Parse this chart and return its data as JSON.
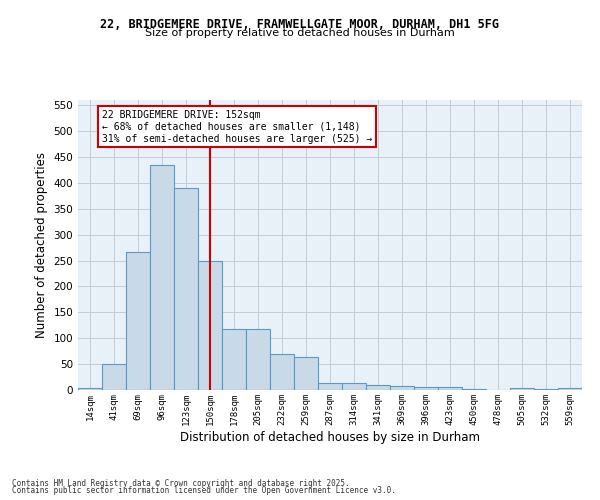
{
  "title_line1": "22, BRIDGEMERE DRIVE, FRAMWELLGATE MOOR, DURHAM, DH1 5FG",
  "title_line2": "Size of property relative to detached houses in Durham",
  "xlabel": "Distribution of detached houses by size in Durham",
  "ylabel": "Number of detached properties",
  "bar_color": "#c8d9e8",
  "bar_edge_color": "#5a9bc4",
  "categories": [
    "14sqm",
    "41sqm",
    "69sqm",
    "96sqm",
    "123sqm",
    "150sqm",
    "178sqm",
    "205sqm",
    "232sqm",
    "259sqm",
    "287sqm",
    "314sqm",
    "341sqm",
    "369sqm",
    "396sqm",
    "423sqm",
    "450sqm",
    "478sqm",
    "505sqm",
    "532sqm",
    "559sqm"
  ],
  "values": [
    3,
    51,
    266,
    435,
    391,
    250,
    117,
    117,
    70,
    63,
    13,
    13,
    9,
    7,
    6,
    5,
    1,
    0,
    4,
    1,
    3
  ],
  "vline_x": 5,
  "vline_color": "#cc0000",
  "annotation_text": "22 BRIDGEMERE DRIVE: 152sqm\n← 68% of detached houses are smaller (1,148)\n31% of semi-detached houses are larger (525) →",
  "annotation_box_color": "#ffffff",
  "annotation_box_edge": "#cc0000",
  "ylim": [
    0,
    560
  ],
  "yticks": [
    0,
    50,
    100,
    150,
    200,
    250,
    300,
    350,
    400,
    450,
    500,
    550
  ],
  "footnote_line1": "Contains HM Land Registry data © Crown copyright and database right 2025.",
  "footnote_line2": "Contains public sector information licensed under the Open Government Licence v3.0.",
  "bg_color": "#ffffff",
  "grid_color": "#c0ccd8",
  "ax_bg_color": "#e8f0f8"
}
